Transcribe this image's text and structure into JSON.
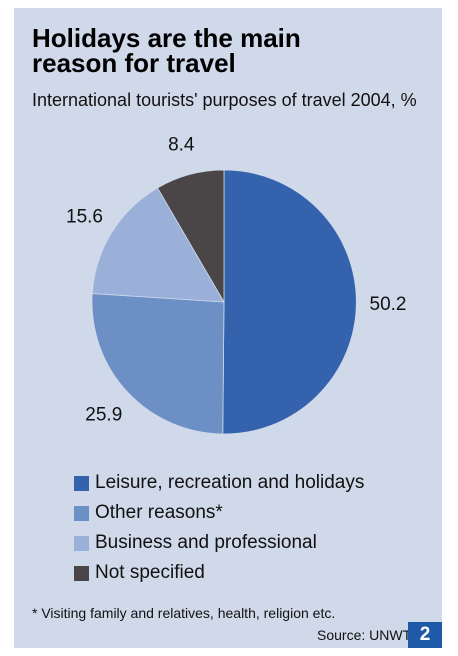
{
  "chart_data": {
    "type": "pie",
    "title": "Holidays are the main reason for travel",
    "subtitle": "International tourists' purposes of travel 2004, %",
    "slices": [
      {
        "label": "Leisure, recreation and holidays",
        "value": 50.2,
        "display": "50.2",
        "color": "#3462ad"
      },
      {
        "label": "Other reasons*",
        "value": 25.9,
        "display": "25.9",
        "color": "#6c8fc6"
      },
      {
        "label": "Business and professional",
        "value": 15.6,
        "display": "15.6",
        "color": "#9bb0d9"
      },
      {
        "label": "Not specified",
        "value": 8.4,
        "display": "8.4",
        "color": "#4a4647"
      }
    ],
    "start": "12 o'clock",
    "direction": "clockwise",
    "legend_position": "bottom-left"
  },
  "footnote": "* Visiting family and relatives, health, religion etc.",
  "source": "Source: UNWTO",
  "figure_number": "2"
}
